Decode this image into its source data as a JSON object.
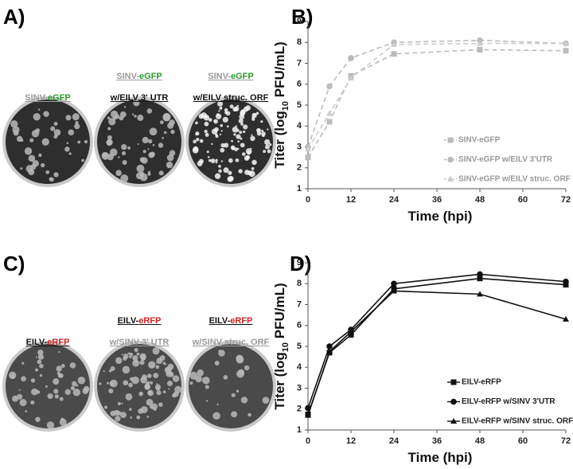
{
  "panels": [
    "A)",
    "B)",
    "C)",
    "D)"
  ],
  "plaques": [
    {
      "line1": null,
      "line2": [
        "SINV-",
        "eGFP"
      ]
    },
    {
      "line1": [
        "SINV-",
        "eGFP"
      ],
      "line2": [
        "w/EILV 3' UTR"
      ]
    },
    {
      "line1": [
        "SINV-",
        "eGFP"
      ],
      "line2": [
        "w/EILV struc. ORF"
      ]
    },
    {
      "line1": null,
      "line2": [
        "EILV-",
        "eRFP"
      ]
    },
    {
      "line1": [
        "EILV-",
        "eRFP"
      ],
      "line2": [
        "w/SINV 3' UTR"
      ]
    },
    {
      "line1": [
        "EILV-",
        "eRFP"
      ],
      "line2": [
        "w/SINV struc. ORF"
      ]
    }
  ],
  "chart_data": [
    {
      "type": "line",
      "x_label": "Time (hpi)",
      "y_label": [
        "Titer (log",
        "10",
        " PFU/mL)"
      ],
      "x": [
        0,
        6,
        12,
        24,
        48,
        72
      ],
      "xlim": [
        0,
        72
      ],
      "xticks": [
        0,
        12,
        24,
        36,
        48,
        60,
        72
      ],
      "ylim": [
        1,
        9
      ],
      "yticks": [
        1,
        2,
        3,
        4,
        5,
        6,
        7,
        8,
        9
      ],
      "line_style": "dashed",
      "legend_color": "#999999",
      "series": [
        {
          "name": "SINV-eGFP",
          "color": "#bbbbbb",
          "marker": "square",
          "values": [
            2.5,
            4.2,
            6.4,
            7.45,
            7.65,
            7.6
          ]
        },
        {
          "name": "SINV-eGFP w/EILV 3'UTR",
          "color": "#bbbbbb",
          "marker": "circle",
          "values": [
            3.0,
            5.9,
            7.25,
            8.0,
            8.1,
            7.95
          ]
        },
        {
          "name": "SINV-eGFP w/EILV struc. ORF",
          "color": "#cccccc",
          "marker": "triangle",
          "values": [
            2.9,
            4.6,
            6.3,
            7.9,
            7.95,
            7.95
          ]
        }
      ]
    },
    {
      "type": "line",
      "x_label": "Time (hpi)",
      "y_label": [
        "Titer (log",
        "10",
        " PFU/mL)"
      ],
      "x": [
        0,
        6,
        12,
        24,
        48,
        72
      ],
      "xlim": [
        0,
        72
      ],
      "xticks": [
        0,
        12,
        24,
        36,
        48,
        60,
        72
      ],
      "ylim": [
        1,
        9
      ],
      "yticks": [
        1,
        2,
        3,
        4,
        5,
        6,
        7,
        8,
        9
      ],
      "line_style": "solid",
      "legend_color": "#222222",
      "series": [
        {
          "name": "EILV-eRFP",
          "color": "#111111",
          "marker": "square",
          "values": [
            1.75,
            4.7,
            5.55,
            7.75,
            8.25,
            7.95
          ]
        },
        {
          "name": "EILV-eRFP w/SINV 3'UTR",
          "color": "#111111",
          "marker": "circle",
          "values": [
            2.05,
            5.0,
            5.8,
            8.0,
            8.45,
            8.1
          ]
        },
        {
          "name": "EILV-eRFP w/SINV struc. ORF",
          "color": "#111111",
          "marker": "triangle",
          "values": [
            1.7,
            4.75,
            5.7,
            7.65,
            7.5,
            6.3
          ]
        }
      ]
    }
  ]
}
